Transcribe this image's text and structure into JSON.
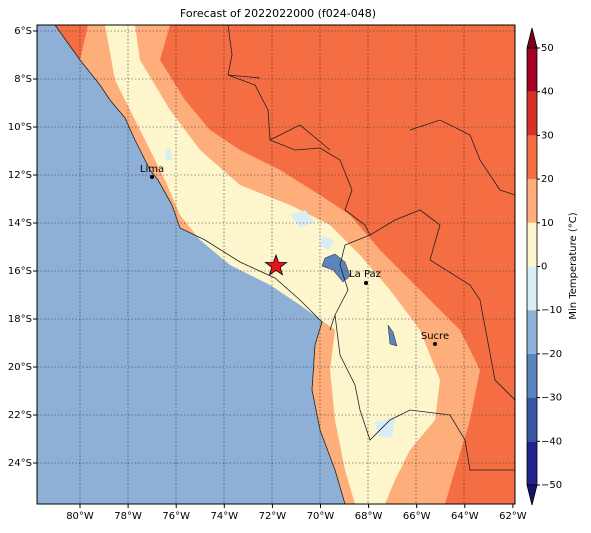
{
  "map": {
    "title": "Forecast of 2022022000 (f024-048)",
    "lon_ticks": [
      "80°W",
      "78°W",
      "76°W",
      "74°W",
      "72°W",
      "70°W",
      "68°W",
      "66°W",
      "64°W",
      "62°W"
    ],
    "lat_ticks": [
      "6°S",
      "8°S",
      "10°S",
      "12°S",
      "14°S",
      "16°S",
      "18°S",
      "20°S",
      "22°S",
      "24°S"
    ],
    "cities": [
      "Lima",
      "La Paz",
      "Sucre"
    ],
    "colorbar": {
      "label": "Min Temperature (°C)",
      "lim": [
        -50,
        50
      ],
      "ticks": [
        {
          "value": -50,
          "label": "−50"
        },
        {
          "value": -40,
          "label": "−40"
        },
        {
          "value": -30,
          "label": "−30"
        },
        {
          "value": -20,
          "label": "−20"
        },
        {
          "value": -10,
          "label": "−10"
        },
        0,
        10,
        20,
        30,
        40,
        50
      ],
      "colors": [
        "#23238e",
        "#3a55a4",
        "#5a84bb",
        "#8fb0d6",
        "#d8edf4",
        "#fdf6cc",
        "#fdae7a",
        "#f46d43",
        "#d73027",
        "#a50026"
      ],
      "under": "#151570",
      "over": "#80001c"
    }
  }
}
